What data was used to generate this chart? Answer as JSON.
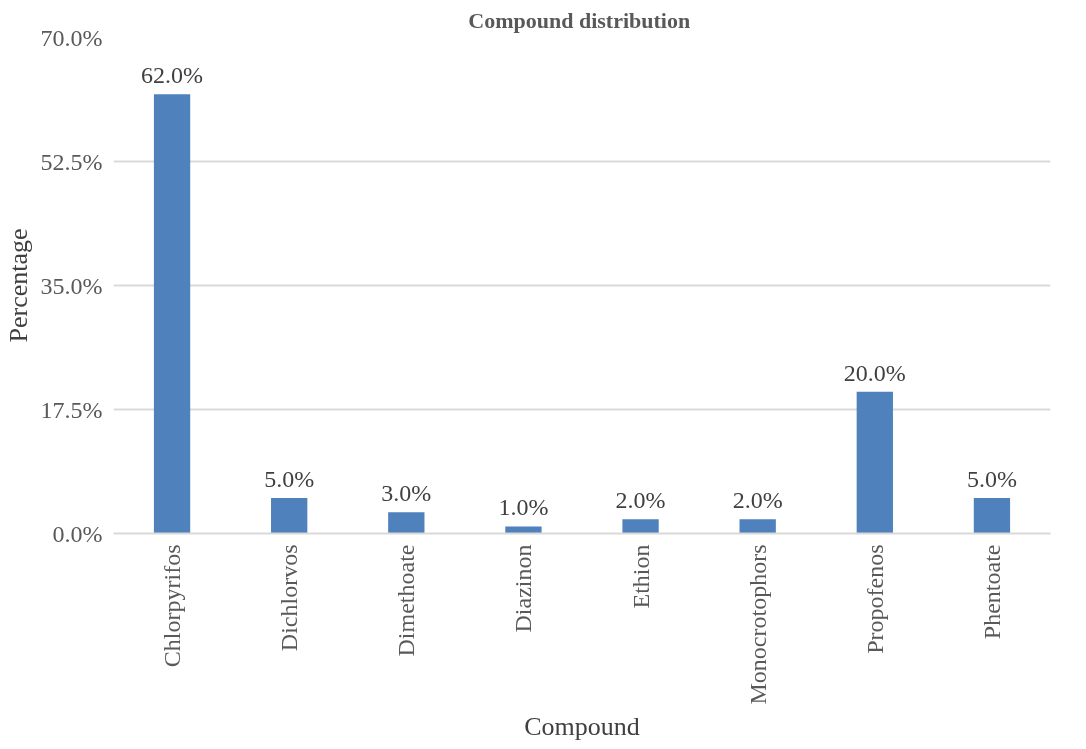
{
  "chart_data": {
    "type": "bar",
    "title": "Compound  distribution",
    "xlabel": "Compound",
    "ylabel": "Percentage",
    "categories": [
      "Chlorpyrifos",
      "Dichlorvos",
      "Dimethoate",
      "Diazinon",
      "Ethion",
      "Monocrotophors",
      "Propofenos",
      "Phentoate"
    ],
    "values": [
      62,
      5,
      3,
      1,
      2,
      2,
      20,
      5
    ],
    "value_labels": [
      "62.0%",
      "5.0%",
      "3.0%",
      "1.0%",
      "2.0%",
      "2.0%",
      "20.0%",
      "5.0%"
    ],
    "color": "#4f81bd",
    "ylim": [
      0,
      70
    ],
    "yticks": [
      {
        "value": 0,
        "label": "0.0%"
      },
      {
        "value": 17.5,
        "label": "17.5%"
      },
      {
        "value": 35,
        "label": "35.0%"
      },
      {
        "value": 52.5,
        "label": "52.5%"
      },
      {
        "value": 70,
        "label": "70.0%"
      }
    ],
    "grid": "y"
  }
}
